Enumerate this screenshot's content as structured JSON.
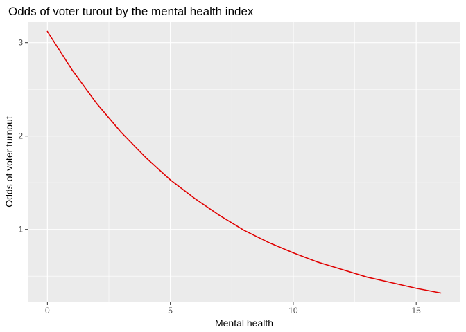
{
  "chart_data": {
    "type": "line",
    "title": "Odds of voter turout by the mental health index",
    "xlabel": "Mental health",
    "ylabel": "Odds of voter turnout",
    "xlim": [
      -0.8,
      16.8
    ],
    "ylim": [
      0.22,
      3.22
    ],
    "x_ticks": [
      0,
      5,
      10,
      15
    ],
    "x_tick_labels": [
      "0",
      "5",
      "10",
      "15"
    ],
    "x_minor": [
      2.5,
      7.5,
      12.5
    ],
    "y_ticks": [
      1,
      2,
      3
    ],
    "y_tick_labels": [
      "1",
      "2",
      "3"
    ],
    "y_minor": [
      0.5,
      1.5,
      2.5
    ],
    "grid": true,
    "colors": {
      "panel": "#ebebeb",
      "grid": "#ffffff",
      "line": "#e00000",
      "tick": "#333333"
    },
    "series": [
      {
        "x": [
          0,
          1,
          2,
          3,
          4,
          5,
          6,
          7,
          8,
          9,
          10,
          11,
          12,
          13,
          14,
          15,
          16
        ],
        "values": [
          3.12,
          2.71,
          2.35,
          2.04,
          1.77,
          1.53,
          1.33,
          1.15,
          0.99,
          0.86,
          0.75,
          0.65,
          0.57,
          0.49,
          0.43,
          0.37,
          0.32
        ]
      }
    ]
  }
}
